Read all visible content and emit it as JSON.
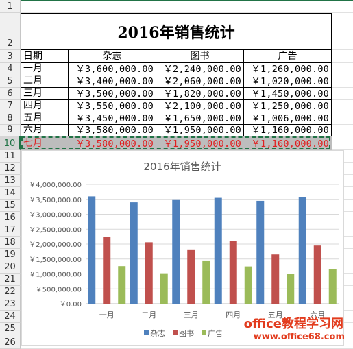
{
  "row_numbers": [
    "1",
    "2",
    "3",
    "4",
    "5",
    "6",
    "7",
    "8",
    "9",
    "10",
    "11",
    "12",
    "13",
    "14",
    "15",
    "16",
    "17",
    "18",
    "19",
    "20",
    "21",
    "22",
    "23",
    "24",
    "25",
    "26"
  ],
  "selected_row": "10",
  "table": {
    "title": "2016年销售统计",
    "headers": [
      "日期",
      "杂志",
      "图书",
      "广告"
    ],
    "rows": [
      [
        "一月",
        "￥3,600,000.00",
        "￥2,240,000.00",
        "￥1,260,000.00"
      ],
      [
        "二月",
        "￥3,400,000.00",
        "￥2,060,000.00",
        "￥1,020,000.00"
      ],
      [
        "三月",
        "￥3,500,000.00",
        "￥1,820,000.00",
        "￥1,450,000.00"
      ],
      [
        "四月",
        "￥3,550,000.00",
        "￥2,100,000.00",
        "￥1,250,000.00"
      ],
      [
        "五月",
        "￥3,450,000.00",
        "￥1,650,000.00",
        "￥1,006,000.00"
      ],
      [
        "六月",
        "￥3,580,000.00",
        "￥1,950,000.00",
        "￥1,160,000.00"
      ],
      [
        "七月",
        "￥3,580,000.00",
        "￥1,950,000.00",
        "￥1,160,000.00"
      ]
    ]
  },
  "chart_data": {
    "type": "bar",
    "title": "2016年销售统计",
    "categories": [
      "一月",
      "二月",
      "三月",
      "四月",
      "五月",
      "六月"
    ],
    "series": [
      {
        "name": "杂志",
        "color": "#4f81bd",
        "values": [
          3600000,
          3400000,
          3500000,
          3550000,
          3450000,
          3580000
        ]
      },
      {
        "name": "图书",
        "color": "#c0504d",
        "values": [
          2240000,
          2060000,
          1820000,
          2100000,
          1650000,
          1950000
        ]
      },
      {
        "name": "广告",
        "color": "#9bbb59",
        "values": [
          1260000,
          1020000,
          1450000,
          1250000,
          1006000,
          1160000
        ]
      }
    ],
    "ylim": [
      0,
      4000000
    ],
    "yticks": [
      0,
      500000,
      1000000,
      1500000,
      2000000,
      2500000,
      3000000,
      3500000,
      4000000
    ],
    "ytick_labels": [
      "￥0.00",
      "￥500,000.00",
      "￥1,000,000.00",
      "￥1,500,000.00",
      "￥2,000,000.00",
      "￥2,500,000.00",
      "￥3,000,000.00",
      "￥3,500,000.00",
      "￥4,000,000.00"
    ],
    "grid": true,
    "legend": "bottom"
  },
  "watermark": {
    "line1": "office教程学习网",
    "line2": "www.office68.com"
  },
  "colors": {
    "excel_green": "#217346",
    "highlight_red": "#e02020"
  }
}
